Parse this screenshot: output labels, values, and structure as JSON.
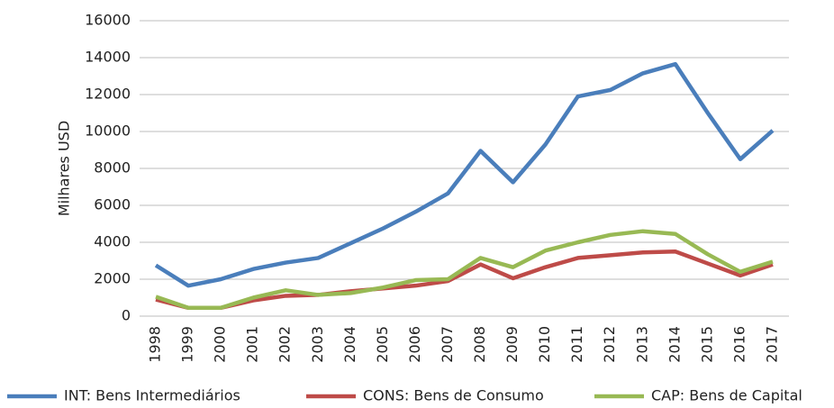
{
  "chart_data": {
    "type": "line",
    "y_label": "Milhares USD",
    "categories": [
      "1998",
      "1999",
      "2000",
      "2001",
      "2002",
      "2003",
      "2004",
      "2005",
      "2006",
      "2007",
      "2008",
      "2009",
      "2010",
      "2011",
      "2012",
      "2013",
      "2014",
      "2015",
      "2016",
      "2017"
    ],
    "series": [
      {
        "name": "INT: Bens Intermediários",
        "color": "#4a7ebb",
        "values": [
          2750,
          1650,
          2000,
          2550,
          2900,
          3150,
          3950,
          4750,
          5650,
          6650,
          8950,
          7250,
          9300,
          11900,
          12250,
          13150,
          13650,
          11000,
          8500,
          10050
        ]
      },
      {
        "name": "CONS: Bens de Consumo",
        "color": "#be4b48",
        "values": [
          900,
          450,
          450,
          850,
          1100,
          1150,
          1350,
          1500,
          1650,
          1900,
          2800,
          2050,
          2650,
          3150,
          3300,
          3450,
          3500,
          2850,
          2200,
          2800
        ]
      },
      {
        "name": "CAP: Bens de Capital",
        "color": "#98b954",
        "values": [
          1050,
          450,
          450,
          1000,
          1400,
          1150,
          1250,
          1550,
          1950,
          2000,
          3150,
          2650,
          3550,
          4000,
          4400,
          4600,
          4450,
          3350,
          2400,
          2950
        ]
      }
    ],
    "ylim": [
      0,
      16000
    ],
    "yticks": [
      0,
      2000,
      4000,
      6000,
      8000,
      10000,
      12000,
      14000,
      16000
    ],
    "grid": true,
    "legend": "bottom"
  }
}
